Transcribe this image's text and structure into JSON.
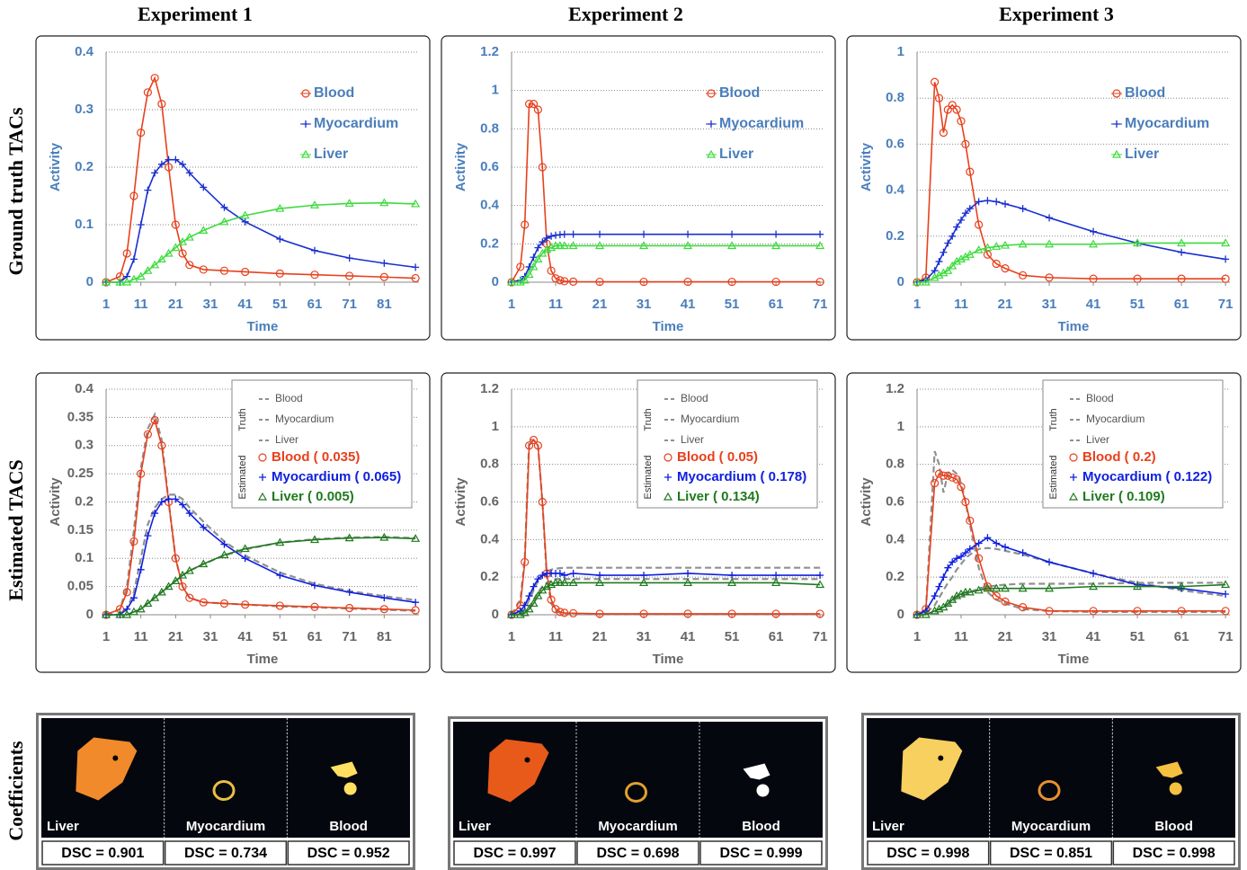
{
  "column_titles": [
    "Experiment 1",
    "Experiment 2",
    "Experiment 3"
  ],
  "row_titles": [
    "Ground truth  TACs",
    "Estimated  TACS",
    "Coefficients"
  ],
  "chart_data": [
    {
      "type": "line",
      "x_label": "Time",
      "y_label": "Activity",
      "label_color": "#4a7ebb",
      "legend": "upper right",
      "grid": true,
      "xlim": [
        1,
        91
      ],
      "xticks": [
        1,
        11,
        21,
        31,
        41,
        51,
        61,
        71,
        81
      ],
      "ylim": [
        0,
        0.4
      ],
      "yticks": [
        0,
        0.1,
        0.2,
        0.3,
        0.4
      ],
      "x": [
        1,
        5,
        7,
        9,
        11,
        13,
        15,
        17,
        19,
        21,
        23,
        25,
        29,
        35,
        41,
        51,
        61,
        71,
        81,
        90
      ],
      "series": [
        {
          "name": "Blood",
          "color": "#e8401c",
          "marker": "circle",
          "values": [
            0,
            0.01,
            0.05,
            0.15,
            0.26,
            0.33,
            0.355,
            0.31,
            0.2,
            0.1,
            0.05,
            0.03,
            0.022,
            0.02,
            0.018,
            0.015,
            0.013,
            0.011,
            0.009,
            0.007
          ]
        },
        {
          "name": "Myocardium",
          "color": "#1a2fd0",
          "marker": "plus",
          "values": [
            0,
            0,
            0.01,
            0.04,
            0.1,
            0.16,
            0.19,
            0.205,
            0.213,
            0.213,
            0.205,
            0.19,
            0.165,
            0.13,
            0.105,
            0.075,
            0.055,
            0.042,
            0.033,
            0.026
          ]
        },
        {
          "name": "Liver",
          "color": "#3ddb3d",
          "marker": "triangle",
          "values": [
            0,
            0,
            0,
            0.005,
            0.01,
            0.02,
            0.03,
            0.04,
            0.05,
            0.06,
            0.07,
            0.078,
            0.09,
            0.105,
            0.116,
            0.128,
            0.134,
            0.137,
            0.138,
            0.136
          ]
        }
      ]
    },
    {
      "type": "line",
      "x_label": "Time",
      "y_label": "Activity",
      "label_color": "#4a7ebb",
      "legend": "upper right",
      "grid": true,
      "xlim": [
        1,
        72
      ],
      "xticks": [
        1,
        11,
        21,
        31,
        41,
        51,
        61,
        71
      ],
      "ylim": [
        0,
        1.2
      ],
      "yticks": [
        0,
        0.2,
        0.4,
        0.6,
        0.8,
        1,
        1.2
      ],
      "x": [
        1,
        3,
        4,
        5,
        6,
        7,
        8,
        9,
        10,
        11,
        12,
        13,
        15,
        21,
        31,
        41,
        51,
        61,
        71
      ],
      "series": [
        {
          "name": "Blood",
          "color": "#e8401c",
          "marker": "circle",
          "values": [
            0,
            0.08,
            0.3,
            0.93,
            0.93,
            0.9,
            0.6,
            0.2,
            0.06,
            0.02,
            0.01,
            0.005,
            0.003,
            0.002,
            0.002,
            0.002,
            0.002,
            0.002,
            0.002
          ]
        },
        {
          "name": "Myocardium",
          "color": "#1a2fd0",
          "marker": "plus",
          "values": [
            0,
            0.01,
            0.03,
            0.08,
            0.13,
            0.18,
            0.21,
            0.23,
            0.24,
            0.245,
            0.248,
            0.25,
            0.25,
            0.25,
            0.25,
            0.25,
            0.25,
            0.25,
            0.25
          ]
        },
        {
          "name": "Liver",
          "color": "#3ddb3d",
          "marker": "triangle",
          "values": [
            0,
            0,
            0.01,
            0.04,
            0.08,
            0.12,
            0.15,
            0.17,
            0.18,
            0.19,
            0.19,
            0.19,
            0.19,
            0.19,
            0.19,
            0.19,
            0.19,
            0.19,
            0.19
          ]
        }
      ]
    },
    {
      "type": "line",
      "x_label": "Time",
      "y_label": "Activity",
      "label_color": "#4a7ebb",
      "legend": "upper right",
      "grid": true,
      "xlim": [
        1,
        72
      ],
      "xticks": [
        1,
        11,
        21,
        31,
        41,
        51,
        61,
        71
      ],
      "ylim": [
        0,
        1
      ],
      "yticks": [
        0,
        0.2,
        0.4,
        0.6,
        0.8,
        1
      ],
      "x": [
        1,
        3,
        5,
        6,
        7,
        8,
        9,
        10,
        11,
        12,
        13,
        15,
        17,
        19,
        21,
        25,
        31,
        41,
        51,
        61,
        71
      ],
      "series": [
        {
          "name": "Blood",
          "color": "#e8401c",
          "marker": "circle",
          "values": [
            0,
            0.02,
            0.87,
            0.8,
            0.65,
            0.75,
            0.77,
            0.75,
            0.7,
            0.6,
            0.48,
            0.25,
            0.12,
            0.08,
            0.06,
            0.03,
            0.02,
            0.015,
            0.015,
            0.015,
            0.015
          ]
        },
        {
          "name": "Myocardium",
          "color": "#1a2fd0",
          "marker": "plus",
          "values": [
            0,
            0.01,
            0.05,
            0.09,
            0.13,
            0.17,
            0.2,
            0.24,
            0.27,
            0.3,
            0.32,
            0.35,
            0.355,
            0.35,
            0.34,
            0.32,
            0.28,
            0.22,
            0.17,
            0.13,
            0.1
          ]
        },
        {
          "name": "Liver",
          "color": "#3ddb3d",
          "marker": "triangle",
          "values": [
            0,
            0,
            0.02,
            0.03,
            0.04,
            0.05,
            0.07,
            0.09,
            0.1,
            0.11,
            0.12,
            0.14,
            0.15,
            0.155,
            0.16,
            0.165,
            0.165,
            0.165,
            0.17,
            0.17,
            0.17
          ]
        }
      ]
    },
    {
      "type": "line",
      "x_label": "Time",
      "y_label": "Activity",
      "label_color": "#666666",
      "legend": "upper right",
      "grid": true,
      "xlim": [
        1,
        91
      ],
      "xticks": [
        1,
        11,
        21,
        31,
        41,
        51,
        61,
        71,
        81
      ],
      "ylim": [
        0,
        0.4
      ],
      "yticks": [
        0,
        0.05,
        0.1,
        0.15,
        0.2,
        0.25,
        0.3,
        0.35,
        0.4
      ],
      "x": [
        1,
        5,
        7,
        9,
        11,
        13,
        15,
        17,
        19,
        21,
        23,
        25,
        29,
        35,
        41,
        51,
        61,
        71,
        81,
        90
      ],
      "truth_label": "Truth",
      "estimated_label": "Estimated",
      "truth_series": [
        {
          "name": "Blood",
          "color": "#909090",
          "dash": true,
          "values": [
            0,
            0.01,
            0.05,
            0.15,
            0.26,
            0.33,
            0.355,
            0.31,
            0.2,
            0.1,
            0.05,
            0.03,
            0.022,
            0.02,
            0.018,
            0.015,
            0.013,
            0.011,
            0.009,
            0.007
          ]
        },
        {
          "name": "Myocardium",
          "color": "#909090",
          "dash": true,
          "values": [
            0,
            0,
            0.01,
            0.04,
            0.1,
            0.16,
            0.19,
            0.205,
            0.213,
            0.213,
            0.205,
            0.19,
            0.165,
            0.13,
            0.105,
            0.075,
            0.055,
            0.042,
            0.033,
            0.026
          ]
        },
        {
          "name": "Liver",
          "color": "#909090",
          "dash": true,
          "values": [
            0,
            0,
            0,
            0.005,
            0.01,
            0.02,
            0.03,
            0.04,
            0.05,
            0.06,
            0.07,
            0.078,
            0.09,
            0.105,
            0.116,
            0.128,
            0.134,
            0.137,
            0.138,
            0.136
          ]
        }
      ],
      "series": [
        {
          "name": "Blood ( 0.035)",
          "color": "#e8401c",
          "marker": "circle",
          "values": [
            0,
            0.01,
            0.04,
            0.13,
            0.25,
            0.32,
            0.345,
            0.3,
            0.2,
            0.1,
            0.05,
            0.03,
            0.022,
            0.02,
            0.018,
            0.016,
            0.014,
            0.012,
            0.01,
            0.008
          ]
        },
        {
          "name": "Myocardium ( 0.065)",
          "color": "#1020e0",
          "marker": "plus",
          "values": [
            0,
            0,
            0.01,
            0.03,
            0.08,
            0.14,
            0.18,
            0.2,
            0.205,
            0.205,
            0.195,
            0.18,
            0.155,
            0.125,
            0.1,
            0.07,
            0.052,
            0.04,
            0.03,
            0.022
          ]
        },
        {
          "name": "Liver ( 0.005)",
          "color": "#1f7a1f",
          "marker": "triangle",
          "values": [
            0,
            0,
            0,
            0.005,
            0.01,
            0.02,
            0.03,
            0.04,
            0.05,
            0.06,
            0.07,
            0.078,
            0.09,
            0.106,
            0.117,
            0.128,
            0.133,
            0.136,
            0.137,
            0.135
          ]
        }
      ]
    },
    {
      "type": "line",
      "x_label": "Time",
      "y_label": "Activity",
      "label_color": "#666666",
      "legend": "upper right",
      "grid": true,
      "xlim": [
        1,
        72
      ],
      "xticks": [
        1,
        11,
        21,
        31,
        41,
        51,
        61,
        71
      ],
      "ylim": [
        0,
        1.2
      ],
      "yticks": [
        0,
        0.2,
        0.4,
        0.6,
        0.8,
        1,
        1.2
      ],
      "x": [
        1,
        3,
        4,
        5,
        6,
        7,
        8,
        9,
        10,
        11,
        12,
        13,
        15,
        21,
        31,
        41,
        51,
        61,
        71
      ],
      "truth_label": "Truth",
      "estimated_label": "Estimated",
      "truth_series": [
        {
          "name": "Blood",
          "color": "#909090",
          "dash": true,
          "values": [
            0,
            0.08,
            0.3,
            0.93,
            0.93,
            0.9,
            0.6,
            0.2,
            0.06,
            0.02,
            0.01,
            0.005,
            0.003,
            0.002,
            0.002,
            0.002,
            0.002,
            0.002,
            0.002
          ]
        },
        {
          "name": "Myocardium",
          "color": "#909090",
          "dash": true,
          "values": [
            0,
            0.01,
            0.03,
            0.08,
            0.13,
            0.18,
            0.21,
            0.23,
            0.24,
            0.245,
            0.248,
            0.25,
            0.25,
            0.25,
            0.25,
            0.25,
            0.25,
            0.25,
            0.25
          ]
        },
        {
          "name": "Liver",
          "color": "#909090",
          "dash": true,
          "values": [
            0,
            0,
            0.01,
            0.04,
            0.08,
            0.12,
            0.15,
            0.17,
            0.18,
            0.19,
            0.19,
            0.19,
            0.19,
            0.19,
            0.19,
            0.19,
            0.19,
            0.19,
            0.19
          ]
        }
      ],
      "series": [
        {
          "name": "Blood ( 0.05)",
          "color": "#e8401c",
          "marker": "circle",
          "values": [
            0,
            0.05,
            0.28,
            0.9,
            0.93,
            0.9,
            0.6,
            0.22,
            0.08,
            0.03,
            0.015,
            0.01,
            0.008,
            0.005,
            0.005,
            0.005,
            0.005,
            0.005,
            0.005
          ]
        },
        {
          "name": "Myocardium ( 0.178)",
          "color": "#1020e0",
          "marker": "plus",
          "values": [
            0,
            0.02,
            0.05,
            0.1,
            0.15,
            0.19,
            0.21,
            0.22,
            0.22,
            0.22,
            0.22,
            0.21,
            0.22,
            0.21,
            0.21,
            0.22,
            0.21,
            0.21,
            0.21
          ]
        },
        {
          "name": "Liver ( 0.134)",
          "color": "#1f7a1f",
          "marker": "triangle",
          "values": [
            0,
            0,
            0.01,
            0.03,
            0.06,
            0.1,
            0.13,
            0.15,
            0.16,
            0.17,
            0.17,
            0.17,
            0.17,
            0.17,
            0.17,
            0.17,
            0.17,
            0.17,
            0.16
          ]
        }
      ]
    },
    {
      "type": "line",
      "x_label": "Time",
      "y_label": "Activity",
      "label_color": "#666666",
      "legend": "upper right",
      "grid": true,
      "xlim": [
        1,
        72
      ],
      "xticks": [
        1,
        11,
        21,
        31,
        41,
        51,
        61,
        71
      ],
      "ylim": [
        0,
        1.2
      ],
      "yticks": [
        0,
        0.2,
        0.4,
        0.6,
        0.8,
        1,
        1.2
      ],
      "x": [
        1,
        3,
        5,
        6,
        7,
        8,
        9,
        10,
        11,
        12,
        13,
        15,
        17,
        19,
        21,
        25,
        31,
        41,
        51,
        61,
        71
      ],
      "truth_label": "Truth",
      "estimated_label": "Estimated",
      "truth_series": [
        {
          "name": "Blood",
          "color": "#909090",
          "dash": true,
          "values": [
            0,
            0.02,
            0.87,
            0.8,
            0.65,
            0.75,
            0.77,
            0.75,
            0.7,
            0.6,
            0.48,
            0.25,
            0.12,
            0.08,
            0.06,
            0.03,
            0.02,
            0.015,
            0.015,
            0.015,
            0.015
          ]
        },
        {
          "name": "Myocardium",
          "color": "#909090",
          "dash": true,
          "values": [
            0,
            0.01,
            0.05,
            0.09,
            0.13,
            0.17,
            0.2,
            0.24,
            0.27,
            0.3,
            0.32,
            0.35,
            0.355,
            0.35,
            0.34,
            0.32,
            0.28,
            0.22,
            0.17,
            0.13,
            0.1
          ]
        },
        {
          "name": "Liver",
          "color": "#909090",
          "dash": true,
          "values": [
            0,
            0,
            0.02,
            0.03,
            0.04,
            0.05,
            0.07,
            0.09,
            0.1,
            0.11,
            0.12,
            0.14,
            0.15,
            0.155,
            0.16,
            0.165,
            0.165,
            0.165,
            0.17,
            0.17,
            0.17
          ]
        }
      ],
      "series": [
        {
          "name": "Blood ( 0.2)",
          "color": "#e8401c",
          "marker": "circle",
          "values": [
            0,
            0.03,
            0.7,
            0.75,
            0.74,
            0.74,
            0.73,
            0.72,
            0.68,
            0.6,
            0.5,
            0.3,
            0.15,
            0.1,
            0.07,
            0.04,
            0.02,
            0.02,
            0.02,
            0.02,
            0.02
          ]
        },
        {
          "name": "Myocardium ( 0.122)",
          "color": "#1020e0",
          "marker": "plus",
          "values": [
            0,
            0.02,
            0.1,
            0.15,
            0.2,
            0.25,
            0.28,
            0.3,
            0.31,
            0.33,
            0.35,
            0.38,
            0.41,
            0.38,
            0.36,
            0.33,
            0.28,
            0.22,
            0.16,
            0.14,
            0.11
          ]
        },
        {
          "name": "Liver ( 0.109)",
          "color": "#1f7a1f",
          "marker": "triangle",
          "values": [
            0,
            0,
            0.02,
            0.03,
            0.04,
            0.06,
            0.08,
            0.1,
            0.11,
            0.12,
            0.12,
            0.13,
            0.14,
            0.14,
            0.14,
            0.14,
            0.14,
            0.15,
            0.15,
            0.15,
            0.16
          ]
        }
      ]
    }
  ],
  "coefficients": [
    {
      "labels": [
        "Liver",
        "Myocardium",
        "Blood"
      ],
      "dsc": [
        "DSC = 0.901",
        "DSC = 0.734",
        "DSC = 0.952"
      ]
    },
    {
      "labels": [
        "Liver",
        "Myocardium",
        "Blood"
      ],
      "dsc": [
        "DSC = 0.997",
        "DSC = 0.698",
        "DSC = 0.999"
      ]
    },
    {
      "labels": [
        "Liver",
        "Myocardium",
        "Blood"
      ],
      "dsc": [
        "DSC = 0.998",
        "DSC = 0.851",
        "DSC = 0.998"
      ]
    }
  ]
}
